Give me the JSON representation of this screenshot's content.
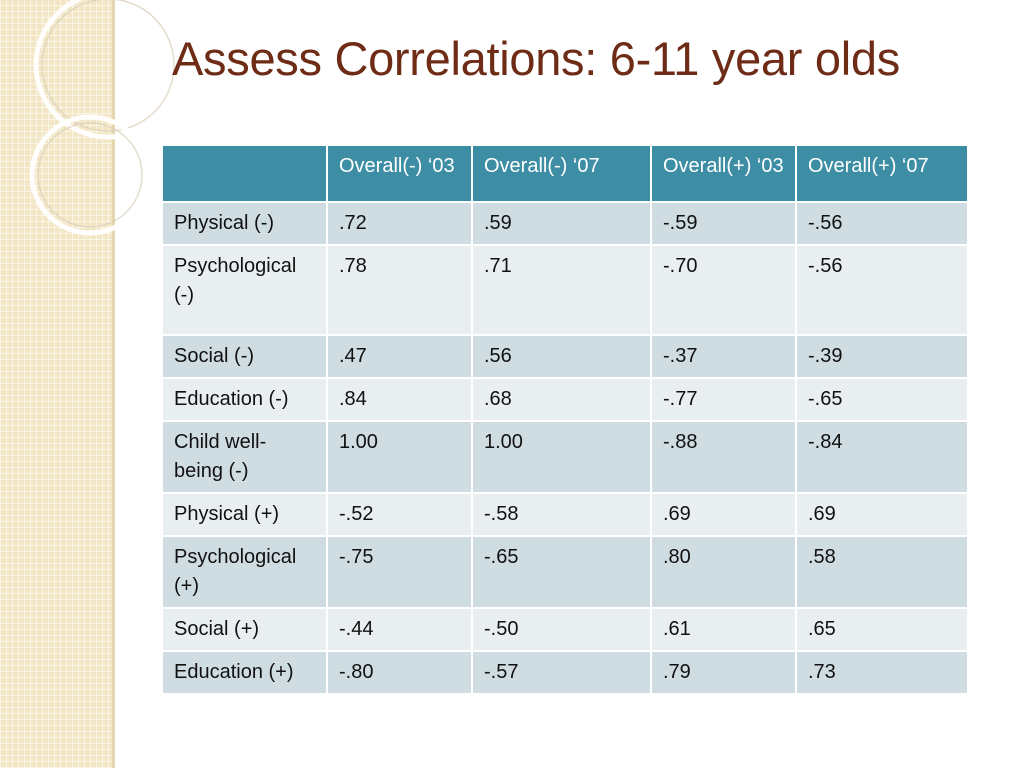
{
  "slide": {
    "title": "Assess Correlations: 6-11 year olds"
  },
  "table": {
    "headers": [
      "",
      "Overall(-) ‘03",
      "Overall(-) ‘07",
      "Overall(+) ‘03",
      "Overall(+) ‘07"
    ],
    "rows": [
      {
        "label": "Physical (-)",
        "values": [
          ".72",
          ".59",
          "-.59",
          "-.56"
        ]
      },
      {
        "label": "Psychological (-)",
        "values": [
          ".78",
          ".71",
          "-.70",
          "-.56"
        ]
      },
      {
        "label": "Social (-)",
        "values": [
          ".47",
          ".56",
          "-.37",
          "-.39"
        ]
      },
      {
        "label": "Education (-)",
        "values": [
          ".84",
          ".68",
          "-.77",
          "-.65"
        ]
      },
      {
        "label": "Child well-being (-)",
        "values": [
          "1.00",
          "1.00",
          "-.88",
          "-.84"
        ]
      },
      {
        "label": "Physical (+)",
        "values": [
          "-.52",
          "-.58",
          ".69",
          ".69"
        ]
      },
      {
        "label": "Psychological (+)",
        "values": [
          "-.75",
          "-.65",
          ".80",
          ".58"
        ]
      },
      {
        "label": "Social (+)",
        "values": [
          "-.44",
          "-.50",
          ".61",
          ".65"
        ]
      },
      {
        "label": "Education (+)",
        "values": [
          "-.80",
          "-.57",
          ".79",
          ".73"
        ]
      }
    ]
  },
  "colors": {
    "title": "#6e2c16",
    "header_bg": "#3d8ea5",
    "row_dark": "#cfdde2",
    "row_light": "#e9eff1",
    "side_band": "#f3e6c4"
  }
}
